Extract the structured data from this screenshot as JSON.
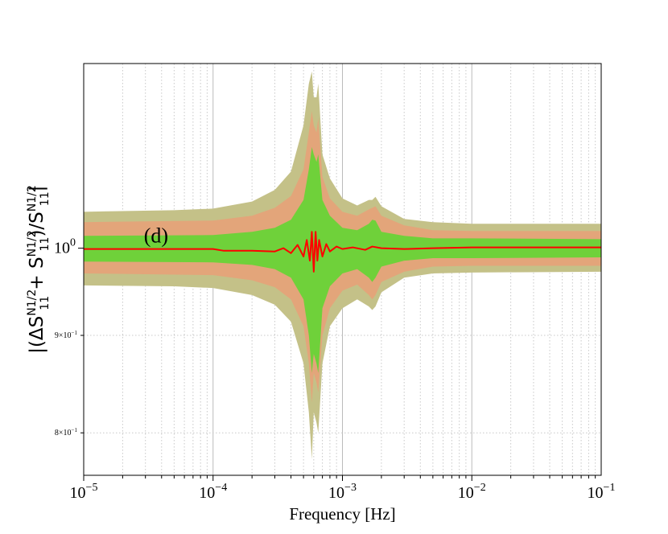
{
  "chart_data": {
    "type": "area",
    "title": "",
    "xlabel": "Frequency [Hz]",
    "ylabel": "|(ΔS11N1/2 + S11N1/2)/S11N1/2|",
    "annotation": "(d)",
    "x_scale": "log",
    "y_scale": "log",
    "xlim": [
      1e-05,
      0.1
    ],
    "ylim": [
      0.76,
      1.25
    ],
    "x_ticks": [
      {
        "value": 1e-05,
        "base": "10",
        "exp": "−5"
      },
      {
        "value": 0.0001,
        "base": "10",
        "exp": "−4"
      },
      {
        "value": 0.001,
        "base": "10",
        "exp": "−3"
      },
      {
        "value": 0.01,
        "base": "10",
        "exp": "−2"
      },
      {
        "value": 0.1,
        "base": "10",
        "exp": "−1"
      }
    ],
    "y_ticks": [
      {
        "value": 1.0,
        "base": "10",
        "exp": "0",
        "size": "large"
      },
      {
        "value": 0.9,
        "base": "9×10",
        "exp": "−1",
        "size": "small"
      },
      {
        "value": 0.8,
        "base": "8×10",
        "exp": "−1",
        "size": "small"
      }
    ],
    "grid": true,
    "colors": {
      "band_outer": "#c4c188",
      "band_middle": "#e3a57a",
      "band_inner": "#6fd13a",
      "median_line": "#ff0000",
      "annotation": "#ff0000"
    },
    "series": [
      {
        "kind": "band",
        "color": "#c4c188",
        "points": [
          [
            1e-05,
            0.956,
            1.045
          ],
          [
            5e-05,
            0.955,
            1.047
          ],
          [
            0.0001,
            0.953,
            1.049
          ],
          [
            0.0002,
            0.945,
            1.058
          ],
          [
            0.0003,
            0.934,
            1.073
          ],
          [
            0.0004,
            0.915,
            1.097
          ],
          [
            0.0005,
            0.87,
            1.16
          ],
          [
            0.00055,
            0.82,
            1.22
          ],
          [
            0.00058,
            0.775,
            1.238
          ],
          [
            0.0006,
            0.82,
            1.2
          ],
          [
            0.00063,
            0.81,
            1.2
          ],
          [
            0.00065,
            0.8,
            1.22
          ],
          [
            0.0007,
            0.87,
            1.12
          ],
          [
            0.0008,
            0.91,
            1.088
          ],
          [
            0.001,
            0.93,
            1.062
          ],
          [
            0.0013,
            0.94,
            1.053
          ],
          [
            0.0016,
            0.932,
            1.06
          ],
          [
            0.0017,
            0.928,
            1.06
          ],
          [
            0.0018,
            0.932,
            1.064
          ],
          [
            0.002,
            0.948,
            1.052
          ],
          [
            0.003,
            0.965,
            1.036
          ],
          [
            0.005,
            0.97,
            1.032
          ],
          [
            0.01,
            0.971,
            1.03
          ],
          [
            0.1,
            0.972,
            1.03
          ]
        ]
      },
      {
        "kind": "band",
        "color": "#e3a57a",
        "points": [
          [
            1e-05,
            0.97,
            1.032
          ],
          [
            0.0001,
            0.968,
            1.034
          ],
          [
            0.0002,
            0.962,
            1.04
          ],
          [
            0.0003,
            0.954,
            1.05
          ],
          [
            0.0004,
            0.94,
            1.065
          ],
          [
            0.0005,
            0.91,
            1.1
          ],
          [
            0.00055,
            0.87,
            1.15
          ],
          [
            0.00058,
            0.83,
            1.18
          ],
          [
            0.0006,
            0.86,
            1.16
          ],
          [
            0.00063,
            0.85,
            1.15
          ],
          [
            0.00065,
            0.84,
            1.17
          ],
          [
            0.0007,
            0.9,
            1.09
          ],
          [
            0.0008,
            0.93,
            1.062
          ],
          [
            0.001,
            0.95,
            1.045
          ],
          [
            0.0013,
            0.957,
            1.04
          ],
          [
            0.0016,
            0.945,
            1.048
          ],
          [
            0.0017,
            0.94,
            1.05
          ],
          [
            0.0018,
            0.945,
            1.052
          ],
          [
            0.002,
            0.96,
            1.04
          ],
          [
            0.003,
            0.972,
            1.028
          ],
          [
            0.005,
            0.978,
            1.022
          ],
          [
            0.01,
            0.979,
            1.021
          ],
          [
            0.1,
            0.979,
            1.021
          ]
        ]
      },
      {
        "kind": "band",
        "color": "#6fd13a",
        "points": [
          [
            1e-05,
            0.984,
            1.015
          ],
          [
            0.0001,
            0.983,
            1.016
          ],
          [
            0.0002,
            0.98,
            1.02
          ],
          [
            0.0003,
            0.975,
            1.025
          ],
          [
            0.0004,
            0.965,
            1.035
          ],
          [
            0.0005,
            0.94,
            1.06
          ],
          [
            0.00055,
            0.9,
            1.1
          ],
          [
            0.00058,
            0.86,
            1.13
          ],
          [
            0.0006,
            0.88,
            1.12
          ],
          [
            0.00063,
            0.87,
            1.11
          ],
          [
            0.00065,
            0.86,
            1.12
          ],
          [
            0.0007,
            0.93,
            1.06
          ],
          [
            0.0008,
            0.955,
            1.04
          ],
          [
            0.001,
            0.97,
            1.025
          ],
          [
            0.0013,
            0.975,
            1.022
          ],
          [
            0.0016,
            0.965,
            1.03
          ],
          [
            0.0017,
            0.96,
            1.035
          ],
          [
            0.0018,
            0.965,
            1.034
          ],
          [
            0.002,
            0.978,
            1.02
          ],
          [
            0.003,
            0.985,
            1.015
          ],
          [
            0.005,
            0.988,
            1.012
          ],
          [
            0.01,
            0.988,
            1.012
          ],
          [
            0.1,
            0.989,
            1.011
          ]
        ]
      },
      {
        "kind": "line",
        "color": "#ff0000",
        "points": [
          [
            1e-05,
            0.999
          ],
          [
            0.0001,
            0.999
          ],
          [
            0.00012,
            0.997
          ],
          [
            0.0002,
            0.997
          ],
          [
            0.0003,
            0.996
          ],
          [
            0.00035,
            1.0
          ],
          [
            0.0004,
            0.994
          ],
          [
            0.00045,
            1.004
          ],
          [
            0.0005,
            0.99
          ],
          [
            0.00053,
            1.01
          ],
          [
            0.00056,
            0.985
          ],
          [
            0.00058,
            1.02
          ],
          [
            0.0006,
            0.972
          ],
          [
            0.00062,
            1.02
          ],
          [
            0.00064,
            0.985
          ],
          [
            0.00066,
            1.01
          ],
          [
            0.0007,
            0.99
          ],
          [
            0.00075,
            1.005
          ],
          [
            0.0008,
            0.996
          ],
          [
            0.0009,
            1.002
          ],
          [
            0.001,
            0.999
          ],
          [
            0.0012,
            1.001
          ],
          [
            0.0015,
            0.998
          ],
          [
            0.0017,
            1.002
          ],
          [
            0.002,
            1.0
          ],
          [
            0.003,
            0.999
          ],
          [
            0.005,
            1.0
          ],
          [
            0.01,
            1.001
          ],
          [
            0.1,
            1.001
          ]
        ]
      }
    ]
  }
}
